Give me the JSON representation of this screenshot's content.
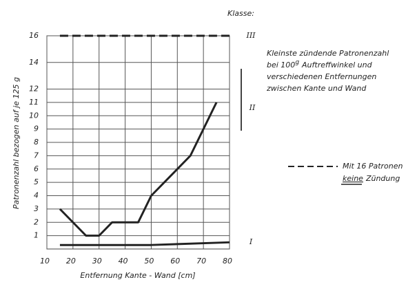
{
  "chart_data": {
    "type": "line",
    "header": "Klasse:",
    "y_label": "Patronenzahl bezogen auf je 125 g",
    "x_label": "Entfernung Kante - Wand [cm]",
    "xlim": [
      10,
      80
    ],
    "xticks": [
      10,
      20,
      30,
      40,
      50,
      60,
      70,
      80
    ],
    "ylim": [
      0,
      16
    ],
    "yticks": [
      1,
      2,
      3,
      4,
      5,
      6,
      7,
      8,
      9,
      10,
      11,
      12,
      14,
      16
    ],
    "grid": true,
    "series": [
      {
        "color": "#222222",
        "dashed": false,
        "x": [
          15,
          25,
          30,
          35,
          45,
          50,
          65,
          75
        ],
        "values": [
          3,
          1,
          1,
          2,
          2,
          4,
          7,
          11
        ]
      },
      {
        "color": "#222222",
        "dashed": false,
        "x": [
          15,
          50,
          80
        ],
        "values": [
          0.3,
          0.3,
          0.5
        ]
      },
      {
        "color": "#222222",
        "dashed": true,
        "x": [
          15,
          80
        ],
        "values": [
          16,
          16
        ]
      }
    ],
    "classes": [
      "III",
      "II",
      "I"
    ],
    "note": [
      "Kleinste zündende Patronenzahl",
      "bei 100",
      "g",
      "Auftreffwinkel und",
      "verschiedenen Entfernungen",
      "zwischen Kante und Wand"
    ],
    "legend": [
      "Mit 16 Patronen",
      "keine",
      "Zündung"
    ]
  }
}
